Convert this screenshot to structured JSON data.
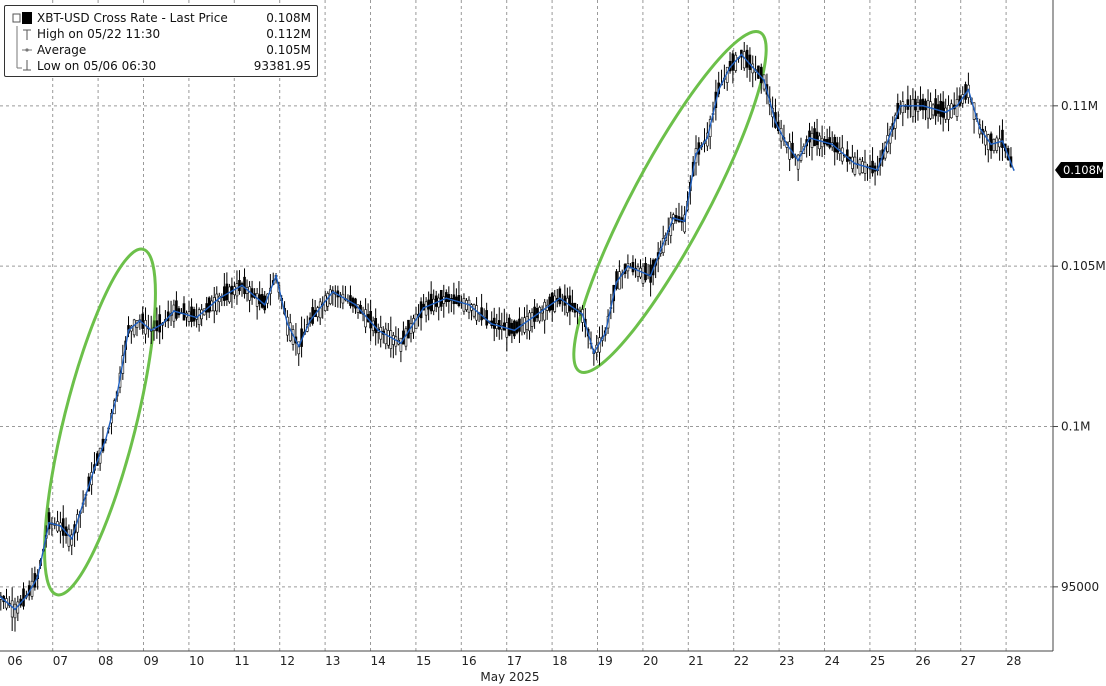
{
  "legend": {
    "title": "XBT-USD Cross Rate - Last Price",
    "title_value": "0.108M",
    "high_label": "High on 05/22 11:30",
    "high_value": "0.112M",
    "avg_label": "Average",
    "avg_value": "0.105M",
    "low_label": "Low on 05/06 06:30",
    "low_value": "93381.95"
  },
  "colors": {
    "price_line": "#1f5fbf",
    "candles": "#000000",
    "highlight_ellipse": "#6cc04a",
    "grid": "#9a9a9a",
    "last_price_badge": "#000000"
  },
  "chart_data": {
    "type": "line",
    "series": [
      {
        "name": "XBT-USD Cross Rate - Last Price",
        "x": [
          "05/06 00:00",
          "05/06 06:00",
          "05/06 12:00",
          "05/06 18:00",
          "05/07 00:00",
          "05/07 06:00",
          "05/07 12:00",
          "05/07 18:00",
          "05/08 00:00",
          "05/08 06:00",
          "05/08 12:00",
          "05/08 18:00",
          "05/09 00:00",
          "05/09 06:00",
          "05/09 12:00",
          "05/09 18:00",
          "05/10 00:00",
          "05/10 12:00",
          "05/11 00:00",
          "05/11 12:00",
          "05/12 00:00",
          "05/12 06:00",
          "05/12 12:00",
          "05/12 18:00",
          "05/13 00:00",
          "05/13 12:00",
          "05/14 00:00",
          "05/14 12:00",
          "05/15 00:00",
          "05/15 12:00",
          "05/16 00:00",
          "05/16 12:00",
          "05/17 00:00",
          "05/17 12:00",
          "05/18 00:00",
          "05/18 12:00",
          "05/19 00:00",
          "05/19 06:00",
          "05/19 12:00",
          "05/19 18:00",
          "05/20 00:00",
          "05/20 12:00",
          "05/21 00:00",
          "05/21 06:00",
          "05/21 12:00",
          "05/21 18:00",
          "05/22 00:00",
          "05/22 06:00",
          "05/22 12:00",
          "05/22 18:00",
          "05/23 00:00",
          "05/23 06:00",
          "05/23 12:00",
          "05/23 18:00",
          "05/24 00:00",
          "05/24 12:00",
          "05/25 00:00",
          "05/25 12:00",
          "05/26 00:00",
          "05/26 12:00",
          "05/27 00:00",
          "05/27 06:00",
          "05/27 12:00",
          "05/27 18:00",
          "05/28 00:00",
          "05/28 06:00",
          "05/28 12:00"
        ],
        "values": [
          94900,
          94600,
          94300,
          94700,
          95300,
          97000,
          96900,
          96500,
          97600,
          98700,
          99600,
          101000,
          103000,
          103300,
          103000,
          103200,
          103600,
          103400,
          104000,
          104400,
          103800,
          104700,
          103200,
          102500,
          103300,
          104200,
          103800,
          103000,
          102600,
          103700,
          104000,
          103800,
          103200,
          103000,
          103500,
          104000,
          103500,
          102300,
          102900,
          104500,
          105000,
          104700,
          106500,
          106400,
          108500,
          109000,
          110500,
          111200,
          111600,
          111200,
          110800,
          109500,
          108800,
          108300,
          109000,
          108800,
          108200,
          108000,
          110000,
          110000,
          109800,
          110000,
          110500,
          109300,
          108800,
          108900,
          108000
        ]
      }
    ],
    "x_ticks": [
      "06",
      "07",
      "08",
      "09",
      "10",
      "11",
      "12",
      "13",
      "14",
      "15",
      "16",
      "17",
      "18",
      "19",
      "20",
      "21",
      "22",
      "23",
      "24",
      "25",
      "26",
      "27",
      "28"
    ],
    "xlabel": "May 2025",
    "y_ticks": [
      "95000",
      "0.1M",
      "0.105M",
      "0.11M"
    ],
    "y_tick_values": [
      95000,
      100000,
      105000,
      110000
    ],
    "ylim": [
      93000,
      113300
    ],
    "last_price_label": "0.108M",
    "grid": true,
    "legend_position": "top-left",
    "y_axis_side": "right"
  }
}
